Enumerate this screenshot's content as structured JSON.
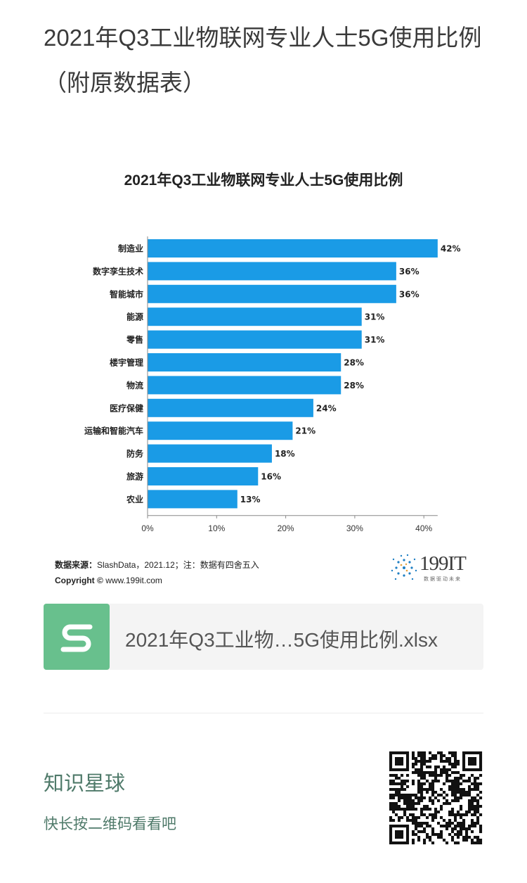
{
  "post": {
    "title": "2021年Q3工业物联网专业人士5G使用比例（附原数据表）"
  },
  "chart_data": {
    "type": "bar",
    "orientation": "horizontal",
    "title": "2021年Q3工业物联网专业人士5G使用比例",
    "categories": [
      "制造业",
      "数字孪生技术",
      "智能城市",
      "能源",
      "零售",
      "楼宇管理",
      "物流",
      "医疗保健",
      "运输和智能汽车",
      "防务",
      "旅游",
      "农业"
    ],
    "values": [
      42,
      36,
      36,
      31,
      31,
      28,
      28,
      24,
      21,
      18,
      16,
      13
    ],
    "data_labels": [
      "42%",
      "36%",
      "36%",
      "31%",
      "31%",
      "28%",
      "28%",
      "24%",
      "21%",
      "18%",
      "16%",
      "13%"
    ],
    "x_ticks": [
      "0%",
      "10%",
      "20%",
      "30%",
      "40%"
    ],
    "xlim": [
      0,
      42
    ],
    "bar_color": "#1a9be6",
    "grid": false
  },
  "source": {
    "label": "数据来源：",
    "text": "SlashData，2021.12；注：数据有四舍五入",
    "copyright_label": "Copyright ©",
    "copyright_text": "www.199it.com"
  },
  "logo": {
    "text": "199IT",
    "sub": "数据驱动未来"
  },
  "file": {
    "name": "2021年Q3工业物…5G使用比例.xlsx",
    "icon": "spreadsheet-s-icon",
    "color": "#68c08d"
  },
  "planet": {
    "title": "知识星球",
    "subtitle": "快长按二维码看看吧",
    "color": "#4f7a6a"
  }
}
